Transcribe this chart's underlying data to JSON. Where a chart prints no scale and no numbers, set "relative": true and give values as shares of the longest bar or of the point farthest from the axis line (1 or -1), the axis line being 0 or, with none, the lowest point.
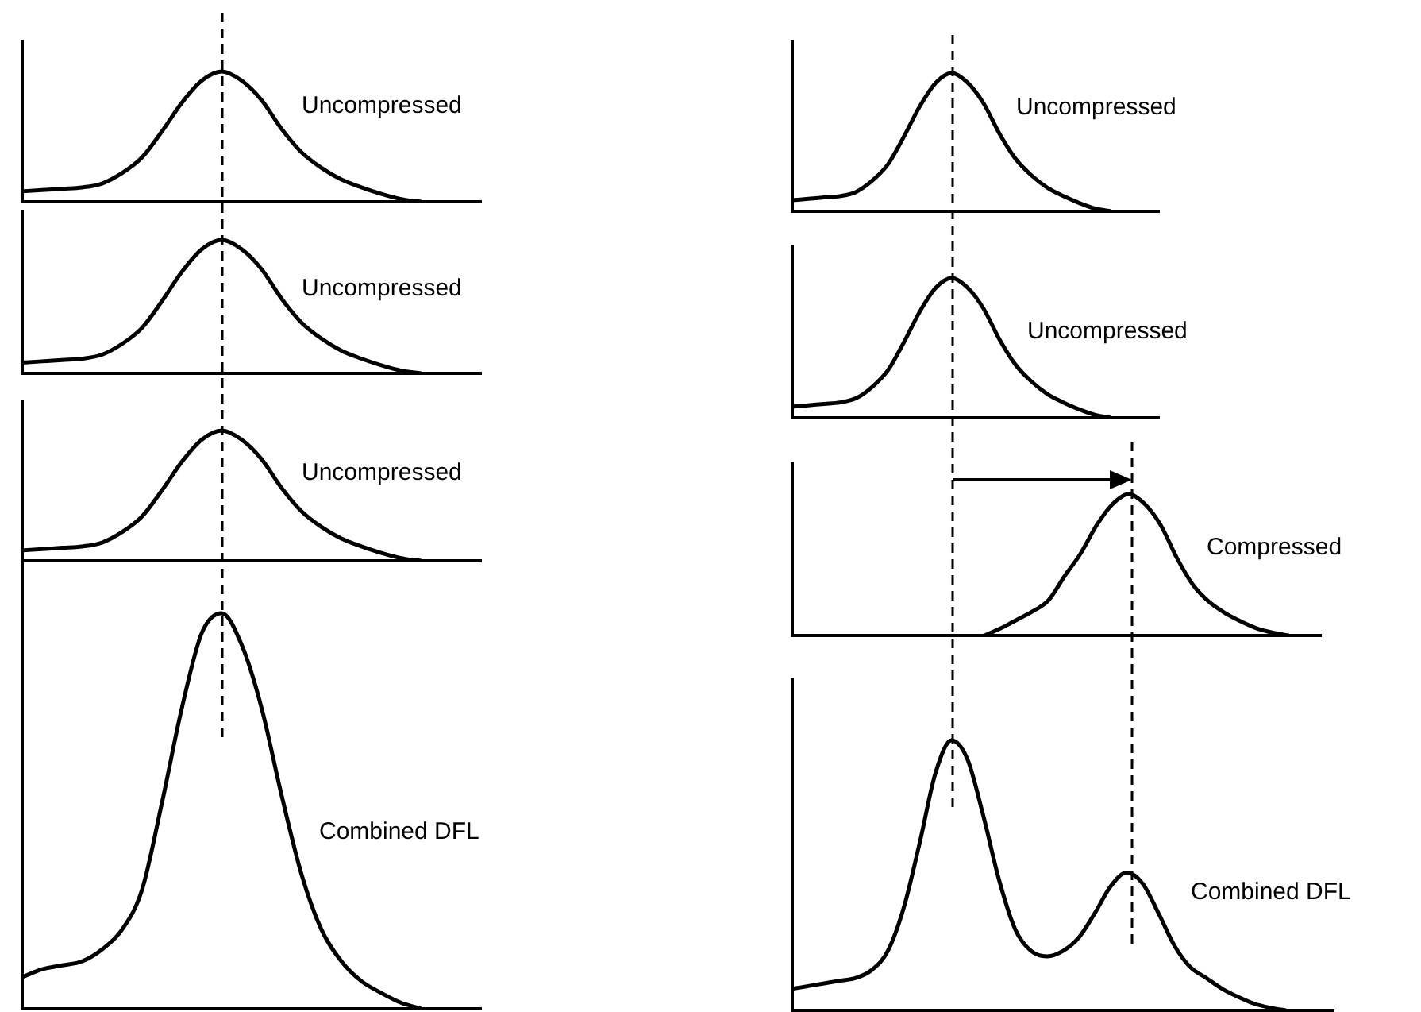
{
  "chart_data": [
    {
      "type": "line",
      "relative": true,
      "tick_labels": false,
      "categories": [
        null,
        null,
        null,
        null,
        null,
        null,
        null,
        null,
        null,
        null,
        null,
        null,
        null,
        null,
        null,
        null,
        null,
        null,
        null,
        null,
        null,
        null,
        null,
        null
      ],
      "series": [
        {
          "name": "Uncompressed",
          "color": "#000000",
          "values": [
            0.08,
            0.09,
            0.1,
            0.11,
            0.14,
            0.22,
            0.34,
            0.54,
            0.76,
            0.93,
            1,
            0.93,
            0.78,
            0.56,
            0.38,
            0.26,
            0.17,
            0.11,
            0.06,
            0.02,
            0,
            null,
            null,
            null
          ]
        }
      ]
    },
    {
      "type": "line",
      "relative": true,
      "tick_labels": false,
      "categories": [
        null,
        null,
        null,
        null,
        null,
        null,
        null,
        null,
        null,
        null,
        null,
        null,
        null,
        null,
        null,
        null,
        null,
        null,
        null,
        null,
        null,
        null,
        null,
        null
      ],
      "series": [
        {
          "name": "Uncompressed",
          "color": "#000000",
          "values": [
            0.08,
            0.09,
            0.1,
            0.11,
            0.14,
            0.22,
            0.34,
            0.54,
            0.76,
            0.93,
            1,
            0.93,
            0.78,
            0.56,
            0.38,
            0.26,
            0.17,
            0.11,
            0.06,
            0.02,
            0,
            null,
            null,
            null
          ]
        }
      ]
    },
    {
      "type": "line",
      "relative": true,
      "tick_labels": false,
      "categories": [
        null,
        null,
        null,
        null,
        null,
        null,
        null,
        null,
        null,
        null,
        null,
        null,
        null,
        null,
        null,
        null,
        null,
        null,
        null,
        null,
        null,
        null,
        null,
        null
      ],
      "series": [
        {
          "name": "Uncompressed",
          "color": "#000000",
          "values": [
            0.08,
            0.09,
            0.1,
            0.11,
            0.14,
            0.22,
            0.34,
            0.54,
            0.76,
            0.93,
            1,
            0.93,
            0.78,
            0.56,
            0.38,
            0.26,
            0.17,
            0.11,
            0.06,
            0.02,
            0,
            null,
            null,
            null
          ]
        }
      ]
    },
    {
      "type": "line",
      "relative": true,
      "tick_labels": false,
      "categories": [
        null,
        null,
        null,
        null,
        null,
        null,
        null,
        null,
        null,
        null,
        null,
        null,
        null,
        null,
        null,
        null,
        null,
        null,
        null,
        null,
        null,
        null,
        null,
        null
      ],
      "series": [
        {
          "name": "Combined DFL",
          "color": "#000000",
          "values": [
            0.08,
            0.1,
            0.11,
            0.12,
            0.15,
            0.2,
            0.3,
            0.52,
            0.76,
            0.95,
            1,
            0.92,
            0.76,
            0.54,
            0.34,
            0.2,
            0.12,
            0.07,
            0.04,
            0.015,
            0,
            null,
            null,
            null
          ]
        }
      ]
    },
    {
      "type": "line",
      "relative": true,
      "tick_labels": false,
      "categories": [
        null,
        null,
        null,
        null,
        null,
        null,
        null,
        null,
        null,
        null,
        null,
        null,
        null,
        null,
        null,
        null,
        null,
        null,
        null,
        null,
        null,
        null,
        null,
        null
      ],
      "series": [
        {
          "name": "Uncompressed",
          "color": "#000000",
          "values": [
            0.08,
            0.09,
            0.1,
            0.11,
            0.14,
            0.22,
            0.34,
            0.54,
            0.76,
            0.93,
            1,
            0.93,
            0.78,
            0.56,
            0.38,
            0.26,
            0.17,
            0.11,
            0.06,
            0.02,
            0,
            null,
            null,
            null
          ]
        }
      ]
    },
    {
      "type": "line",
      "relative": true,
      "tick_labels": false,
      "categories": [
        null,
        null,
        null,
        null,
        null,
        null,
        null,
        null,
        null,
        null,
        null,
        null,
        null,
        null,
        null,
        null,
        null,
        null,
        null,
        null,
        null,
        null,
        null,
        null
      ],
      "series": [
        {
          "name": "Uncompressed",
          "color": "#000000",
          "values": [
            0.08,
            0.09,
            0.1,
            0.11,
            0.14,
            0.22,
            0.34,
            0.54,
            0.76,
            0.93,
            1,
            0.93,
            0.78,
            0.56,
            0.38,
            0.26,
            0.17,
            0.11,
            0.06,
            0.02,
            0,
            null,
            null,
            null
          ]
        }
      ]
    },
    {
      "type": "line",
      "relative": true,
      "tick_labels": false,
      "categories": [
        null,
        null,
        null,
        null,
        null,
        null,
        null,
        null,
        null,
        null,
        null,
        null,
        null,
        null,
        null,
        null,
        null,
        null,
        null,
        null,
        null,
        null,
        null,
        null,
        null,
        null,
        null,
        null,
        null,
        null,
        null,
        null,
        null,
        null
      ],
      "series": [
        {
          "name": "Compressed",
          "color": "#000000",
          "values": [
            null,
            null,
            null,
            null,
            null,
            null,
            null,
            null,
            null,
            null,
            null,
            null,
            0,
            0.05,
            0.11,
            0.17,
            0.25,
            0.42,
            0.58,
            0.78,
            0.93,
            1,
            0.93,
            0.78,
            0.55,
            0.36,
            0.24,
            0.16,
            0.1,
            0.05,
            0.02,
            0,
            null,
            null
          ]
        }
      ]
    },
    {
      "type": "line",
      "relative": true,
      "tick_labels": false,
      "categories": [
        null,
        null,
        null,
        null,
        null,
        null,
        null,
        null,
        null,
        null,
        null,
        null,
        null,
        null,
        null,
        null,
        null,
        null,
        null,
        null,
        null,
        null,
        null,
        null,
        null,
        null,
        null,
        null,
        null,
        null,
        null,
        null,
        null,
        null,
        null
      ],
      "series": [
        {
          "name": "Combined DFL",
          "color": "#000000",
          "values": [
            0.08,
            0.09,
            0.1,
            0.11,
            0.12,
            0.15,
            0.22,
            0.38,
            0.62,
            0.88,
            1,
            0.93,
            0.72,
            0.48,
            0.3,
            0.22,
            0.2,
            0.22,
            0.27,
            0.36,
            0.46,
            0.51,
            0.47,
            0.36,
            0.24,
            0.16,
            0.12,
            0.08,
            0.05,
            0.025,
            0.01,
            0,
            null,
            null,
            null
          ]
        }
      ]
    }
  ]
}
